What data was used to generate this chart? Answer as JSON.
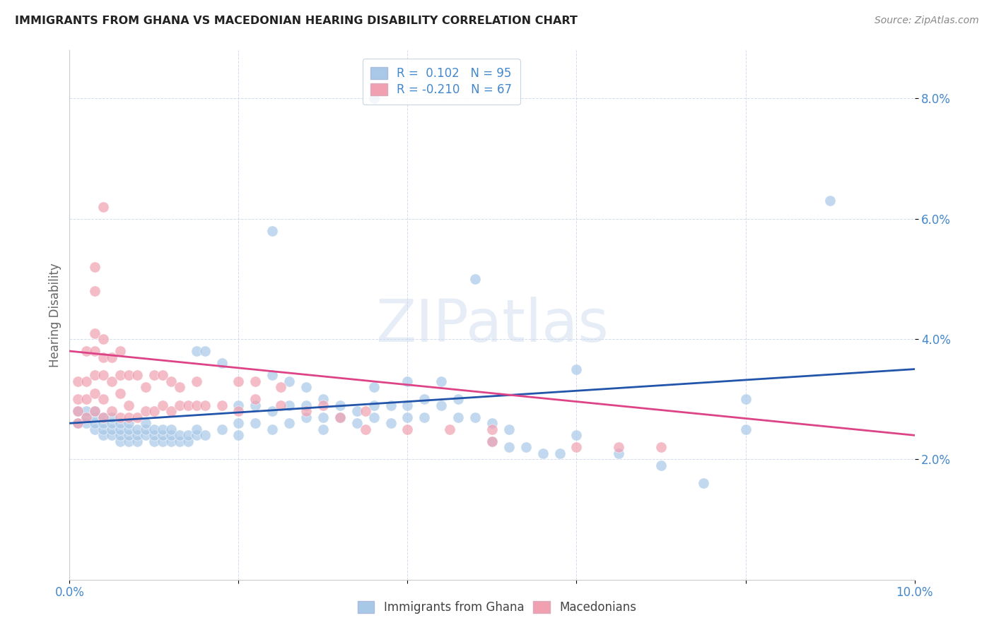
{
  "title": "IMMIGRANTS FROM GHANA VS MACEDONIAN HEARING DISABILITY CORRELATION CHART",
  "source": "Source: ZipAtlas.com",
  "ylabel": "Hearing Disability",
  "xlim": [
    0.0,
    0.1
  ],
  "ylim": [
    0.0,
    0.088
  ],
  "yticks": [
    0.02,
    0.04,
    0.06,
    0.08
  ],
  "ytick_labels": [
    "2.0%",
    "4.0%",
    "6.0%",
    "8.0%"
  ],
  "xticks": [
    0.0,
    0.02,
    0.04,
    0.06,
    0.08,
    0.1
  ],
  "xtick_labels": [
    "0.0%",
    "",
    "",
    "",
    "",
    "10.0%"
  ],
  "color_blue": "#a8c8e8",
  "color_pink": "#f0a0b0",
  "line_color_blue": "#2255aa",
  "line_color_pink": "#dd4488",
  "watermark": "ZIPatlas",
  "ghana_points": [
    [
      0.001,
      0.026
    ],
    [
      0.001,
      0.028
    ],
    [
      0.002,
      0.026
    ],
    [
      0.002,
      0.027
    ],
    [
      0.002,
      0.028
    ],
    [
      0.003,
      0.025
    ],
    [
      0.003,
      0.026
    ],
    [
      0.003,
      0.027
    ],
    [
      0.003,
      0.028
    ],
    [
      0.004,
      0.024
    ],
    [
      0.004,
      0.025
    ],
    [
      0.004,
      0.026
    ],
    [
      0.004,
      0.027
    ],
    [
      0.005,
      0.024
    ],
    [
      0.005,
      0.025
    ],
    [
      0.005,
      0.026
    ],
    [
      0.005,
      0.027
    ],
    [
      0.006,
      0.023
    ],
    [
      0.006,
      0.024
    ],
    [
      0.006,
      0.025
    ],
    [
      0.006,
      0.026
    ],
    [
      0.007,
      0.023
    ],
    [
      0.007,
      0.024
    ],
    [
      0.007,
      0.025
    ],
    [
      0.007,
      0.026
    ],
    [
      0.008,
      0.023
    ],
    [
      0.008,
      0.024
    ],
    [
      0.008,
      0.025
    ],
    [
      0.009,
      0.024
    ],
    [
      0.009,
      0.025
    ],
    [
      0.009,
      0.026
    ],
    [
      0.01,
      0.023
    ],
    [
      0.01,
      0.024
    ],
    [
      0.01,
      0.025
    ],
    [
      0.011,
      0.023
    ],
    [
      0.011,
      0.024
    ],
    [
      0.011,
      0.025
    ],
    [
      0.012,
      0.023
    ],
    [
      0.012,
      0.024
    ],
    [
      0.012,
      0.025
    ],
    [
      0.013,
      0.023
    ],
    [
      0.013,
      0.024
    ],
    [
      0.014,
      0.023
    ],
    [
      0.014,
      0.024
    ],
    [
      0.015,
      0.024
    ],
    [
      0.015,
      0.025
    ],
    [
      0.015,
      0.038
    ],
    [
      0.016,
      0.024
    ],
    [
      0.016,
      0.038
    ],
    [
      0.018,
      0.025
    ],
    [
      0.018,
      0.036
    ],
    [
      0.02,
      0.024
    ],
    [
      0.02,
      0.026
    ],
    [
      0.02,
      0.029
    ],
    [
      0.022,
      0.026
    ],
    [
      0.022,
      0.029
    ],
    [
      0.024,
      0.025
    ],
    [
      0.024,
      0.028
    ],
    [
      0.024,
      0.034
    ],
    [
      0.024,
      0.058
    ],
    [
      0.026,
      0.026
    ],
    [
      0.026,
      0.029
    ],
    [
      0.026,
      0.033
    ],
    [
      0.028,
      0.027
    ],
    [
      0.028,
      0.029
    ],
    [
      0.028,
      0.032
    ],
    [
      0.03,
      0.025
    ],
    [
      0.03,
      0.027
    ],
    [
      0.03,
      0.03
    ],
    [
      0.032,
      0.027
    ],
    [
      0.032,
      0.029
    ],
    [
      0.034,
      0.026
    ],
    [
      0.034,
      0.028
    ],
    [
      0.036,
      0.027
    ],
    [
      0.036,
      0.029
    ],
    [
      0.036,
      0.032
    ],
    [
      0.038,
      0.026
    ],
    [
      0.038,
      0.029
    ],
    [
      0.04,
      0.027
    ],
    [
      0.04,
      0.029
    ],
    [
      0.04,
      0.033
    ],
    [
      0.042,
      0.027
    ],
    [
      0.042,
      0.03
    ],
    [
      0.044,
      0.029
    ],
    [
      0.044,
      0.033
    ],
    [
      0.046,
      0.027
    ],
    [
      0.046,
      0.03
    ],
    [
      0.048,
      0.027
    ],
    [
      0.048,
      0.05
    ],
    [
      0.05,
      0.023
    ],
    [
      0.05,
      0.026
    ],
    [
      0.052,
      0.022
    ],
    [
      0.052,
      0.025
    ],
    [
      0.054,
      0.022
    ],
    [
      0.056,
      0.021
    ],
    [
      0.058,
      0.021
    ],
    [
      0.06,
      0.024
    ],
    [
      0.06,
      0.035
    ],
    [
      0.065,
      0.021
    ],
    [
      0.07,
      0.019
    ],
    [
      0.075,
      0.016
    ],
    [
      0.08,
      0.025
    ],
    [
      0.08,
      0.03
    ],
    [
      0.09,
      0.063
    ],
    [
      0.036,
      0.08
    ]
  ],
  "macedonian_points": [
    [
      0.001,
      0.026
    ],
    [
      0.001,
      0.028
    ],
    [
      0.001,
      0.03
    ],
    [
      0.001,
      0.033
    ],
    [
      0.002,
      0.027
    ],
    [
      0.002,
      0.03
    ],
    [
      0.002,
      0.033
    ],
    [
      0.002,
      0.038
    ],
    [
      0.003,
      0.028
    ],
    [
      0.003,
      0.031
    ],
    [
      0.003,
      0.034
    ],
    [
      0.003,
      0.038
    ],
    [
      0.003,
      0.041
    ],
    [
      0.003,
      0.048
    ],
    [
      0.003,
      0.052
    ],
    [
      0.004,
      0.027
    ],
    [
      0.004,
      0.03
    ],
    [
      0.004,
      0.034
    ],
    [
      0.004,
      0.037
    ],
    [
      0.004,
      0.04
    ],
    [
      0.004,
      0.062
    ],
    [
      0.005,
      0.028
    ],
    [
      0.005,
      0.033
    ],
    [
      0.005,
      0.037
    ],
    [
      0.006,
      0.027
    ],
    [
      0.006,
      0.031
    ],
    [
      0.006,
      0.034
    ],
    [
      0.006,
      0.038
    ],
    [
      0.007,
      0.027
    ],
    [
      0.007,
      0.029
    ],
    [
      0.007,
      0.034
    ],
    [
      0.008,
      0.027
    ],
    [
      0.008,
      0.034
    ],
    [
      0.009,
      0.028
    ],
    [
      0.009,
      0.032
    ],
    [
      0.01,
      0.028
    ],
    [
      0.01,
      0.034
    ],
    [
      0.011,
      0.029
    ],
    [
      0.011,
      0.034
    ],
    [
      0.012,
      0.028
    ],
    [
      0.012,
      0.033
    ],
    [
      0.013,
      0.029
    ],
    [
      0.013,
      0.032
    ],
    [
      0.014,
      0.029
    ],
    [
      0.015,
      0.029
    ],
    [
      0.015,
      0.033
    ],
    [
      0.016,
      0.029
    ],
    [
      0.018,
      0.029
    ],
    [
      0.02,
      0.028
    ],
    [
      0.02,
      0.033
    ],
    [
      0.022,
      0.03
    ],
    [
      0.022,
      0.033
    ],
    [
      0.025,
      0.029
    ],
    [
      0.025,
      0.032
    ],
    [
      0.028,
      0.028
    ],
    [
      0.03,
      0.029
    ],
    [
      0.032,
      0.027
    ],
    [
      0.035,
      0.025
    ],
    [
      0.035,
      0.028
    ],
    [
      0.04,
      0.025
    ],
    [
      0.045,
      0.025
    ],
    [
      0.05,
      0.023
    ],
    [
      0.05,
      0.025
    ],
    [
      0.06,
      0.022
    ],
    [
      0.065,
      0.022
    ],
    [
      0.07,
      0.022
    ]
  ],
  "blue_line": [
    0.0,
    0.1
  ],
  "blue_line_y": [
    0.026,
    0.035
  ],
  "pink_line": [
    0.0,
    0.1
  ],
  "pink_line_y": [
    0.038,
    0.024
  ]
}
